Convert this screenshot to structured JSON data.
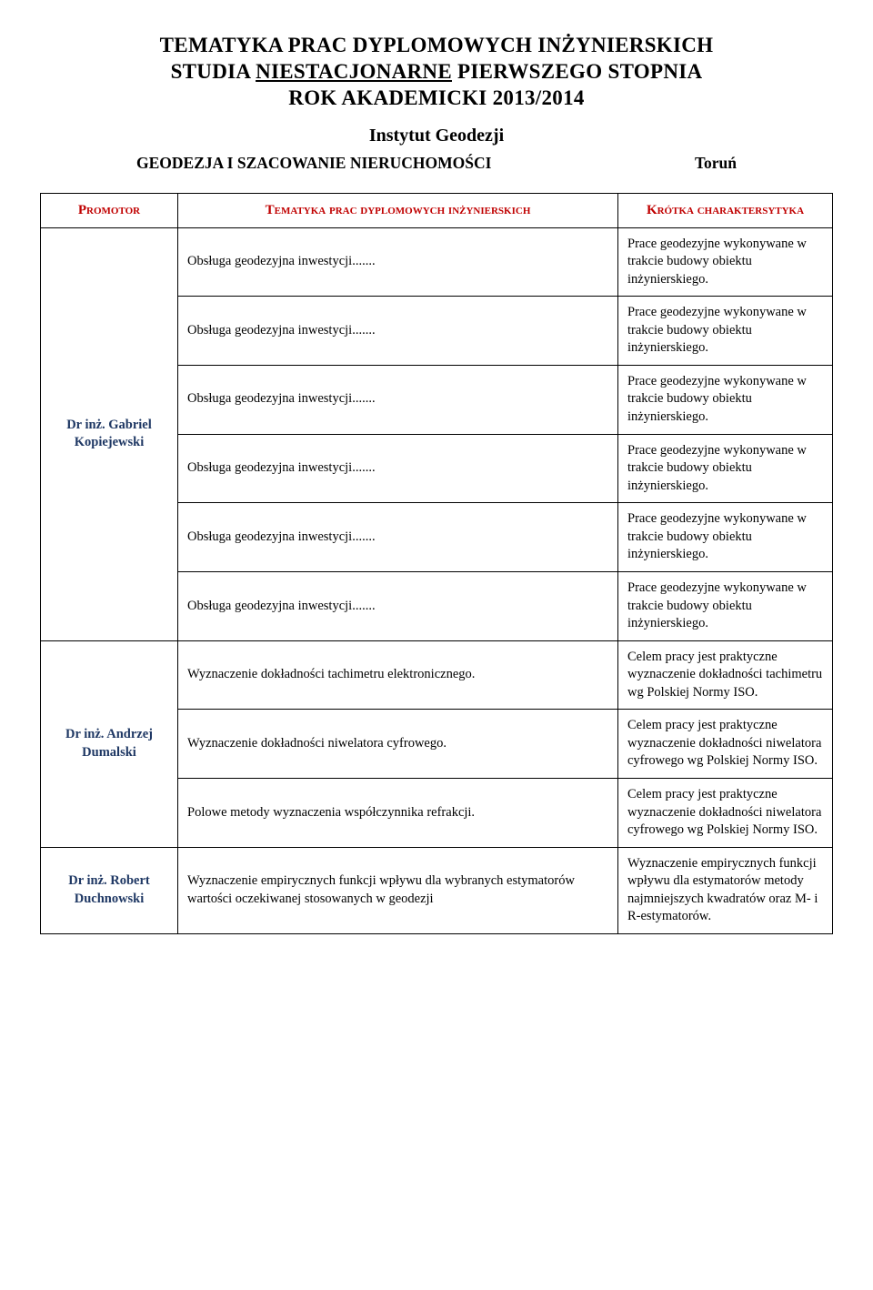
{
  "title": {
    "line1": "TEMATYKA PRAC DYPLOMOWYCH INŻYNIERSKICH",
    "line2_prefix": "STUDIA ",
    "line2_underlined": "NIESTACJONARNE",
    "line2_suffix": " PIERWSZEGO STOPNIA",
    "line3": "ROK AKADEMICKI 2013/2014"
  },
  "subtitle": "Instytut Geodezji",
  "dept_line": {
    "left": "GEODEZJA I SZACOWANIE NIERUCHOMOŚCI",
    "right": "Toruń"
  },
  "columns": {
    "promotor": "Promotor",
    "topic": "Tematyka prac dyplomowych inżynierskich",
    "desc": "Krótka charaktersytyka"
  },
  "colors": {
    "header_text": "#c00000",
    "promotor_text": "#1f3864",
    "border": "#000000",
    "background": "#ffffff",
    "body_text": "#000000"
  },
  "typography": {
    "title_fontsize_pt": 17,
    "subtitle_fontsize_pt": 15,
    "header_fontsize_pt": 11,
    "body_fontsize_pt": 11,
    "font_family": "Book Antiqua / Palatino"
  },
  "promotors": [
    {
      "name": "Dr inż. Gabriel Kopiejewski",
      "rows": [
        {
          "topic": "Obsługa geodezyjna inwestycji.......",
          "desc": "Prace geodezyjne wykonywane w trakcie budowy obiektu inżynierskiego."
        },
        {
          "topic": "Obsługa geodezyjna inwestycji.......",
          "desc": "Prace geodezyjne wykonywane w trakcie budowy obiektu inżynierskiego."
        },
        {
          "topic": "Obsługa geodezyjna inwestycji.......",
          "desc": "Prace geodezyjne wykonywane w trakcie budowy obiektu inżynierskiego."
        },
        {
          "topic": "Obsługa geodezyjna inwestycji.......",
          "desc": "Prace geodezyjne wykonywane w trakcie budowy obiektu inżynierskiego."
        },
        {
          "topic": "Obsługa geodezyjna inwestycji.......",
          "desc": "Prace geodezyjne wykonywane w trakcie budowy obiektu inżynierskiego."
        },
        {
          "topic": "Obsługa geodezyjna inwestycji.......",
          "desc": "Prace geodezyjne wykonywane w trakcie budowy obiektu inżynierskiego."
        }
      ]
    },
    {
      "name": "Dr inż. Andrzej Dumalski",
      "rows": [
        {
          "topic": "Wyznaczenie dokładności tachimetru elektronicznego.",
          "desc": "Celem pracy jest praktyczne wyznaczenie dokładności tachimetru wg Polskiej Normy ISO."
        },
        {
          "topic": "Wyznaczenie dokładności niwelatora cyfrowego.",
          "desc": "Celem pracy jest praktyczne wyznaczenie dokładności niwelatora cyfrowego wg Polskiej Normy ISO."
        },
        {
          "topic": "Polowe metody wyznaczenia współczynnika refrakcji.",
          "desc": "Celem pracy jest praktyczne wyznaczenie dokładności niwelatora cyfrowego wg Polskiej Normy ISO."
        }
      ]
    },
    {
      "name": "Dr inż. Robert Duchnowski",
      "rows": [
        {
          "topic": "Wyznaczenie empirycznych funkcji wpływu dla wybranych estymatorów wartości oczekiwanej stosowanych w geodezji",
          "desc": " Wyznaczenie empirycznych funkcji wpływu dla estymatorów metody najmniejszych kwadratów oraz M- i R-estymatorów."
        }
      ]
    }
  ]
}
